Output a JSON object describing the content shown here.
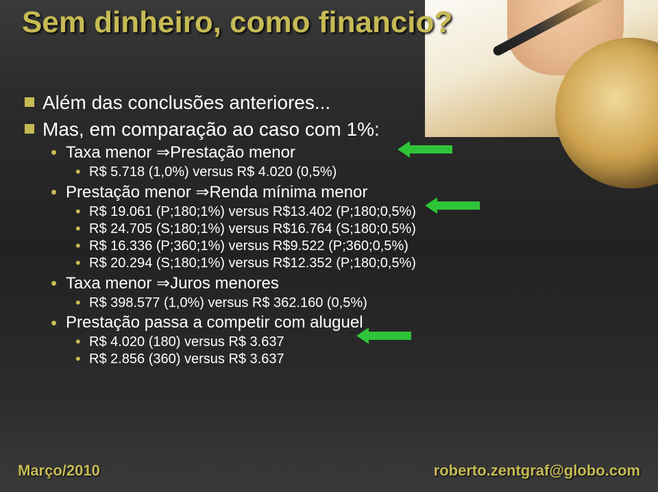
{
  "title": "Sem dinheiro, como financio?",
  "bullets": {
    "b1": "Além das conclusões anteriores...",
    "b2_a": "Mas, em comparação ao caso com 1%:",
    "s1_a": "Taxa menor",
    "s1_b": "Prestação menor",
    "s1_1": "R$ 5.718 (1,0%) versus R$  4.020 (0,5%)",
    "s2_a": "Prestação menor",
    "s2_b": "Renda mínima menor",
    "s2_1": "R$ 19.061 (P;180;1%) versus R$13.402 (P;180;0,5%)",
    "s2_2": "R$ 24.705 (S;180;1%) versus R$16.764 (S;180;0,5%)",
    "s2_3": "R$ 16.336 (P;360;1%) versus R$9.522 (P;360;0,5%)",
    "s2_4": "R$ 20.294 (S;180;1%) versus R$12.352 (P;180;0,5%)",
    "s3_a": "Taxa menor",
    "s3_b": "Juros menores",
    "s3_1": "R$ 398.577 (1,0%) versus R$ 362.160 (0,5%)",
    "s4": "Prestação passa a competir com aluguel",
    "s4_1": "R$ 4.020 (180) versus R$ 3.637",
    "s4_2": "R$ 2.856 (360) versus R$ 3.637"
  },
  "footer": {
    "left": "Março/2010",
    "right": "roberto.zentgraf@globo.com"
  },
  "colors": {
    "accent": "#c6ba55",
    "arrow": "#2ec43a",
    "text": "#ffffff"
  }
}
